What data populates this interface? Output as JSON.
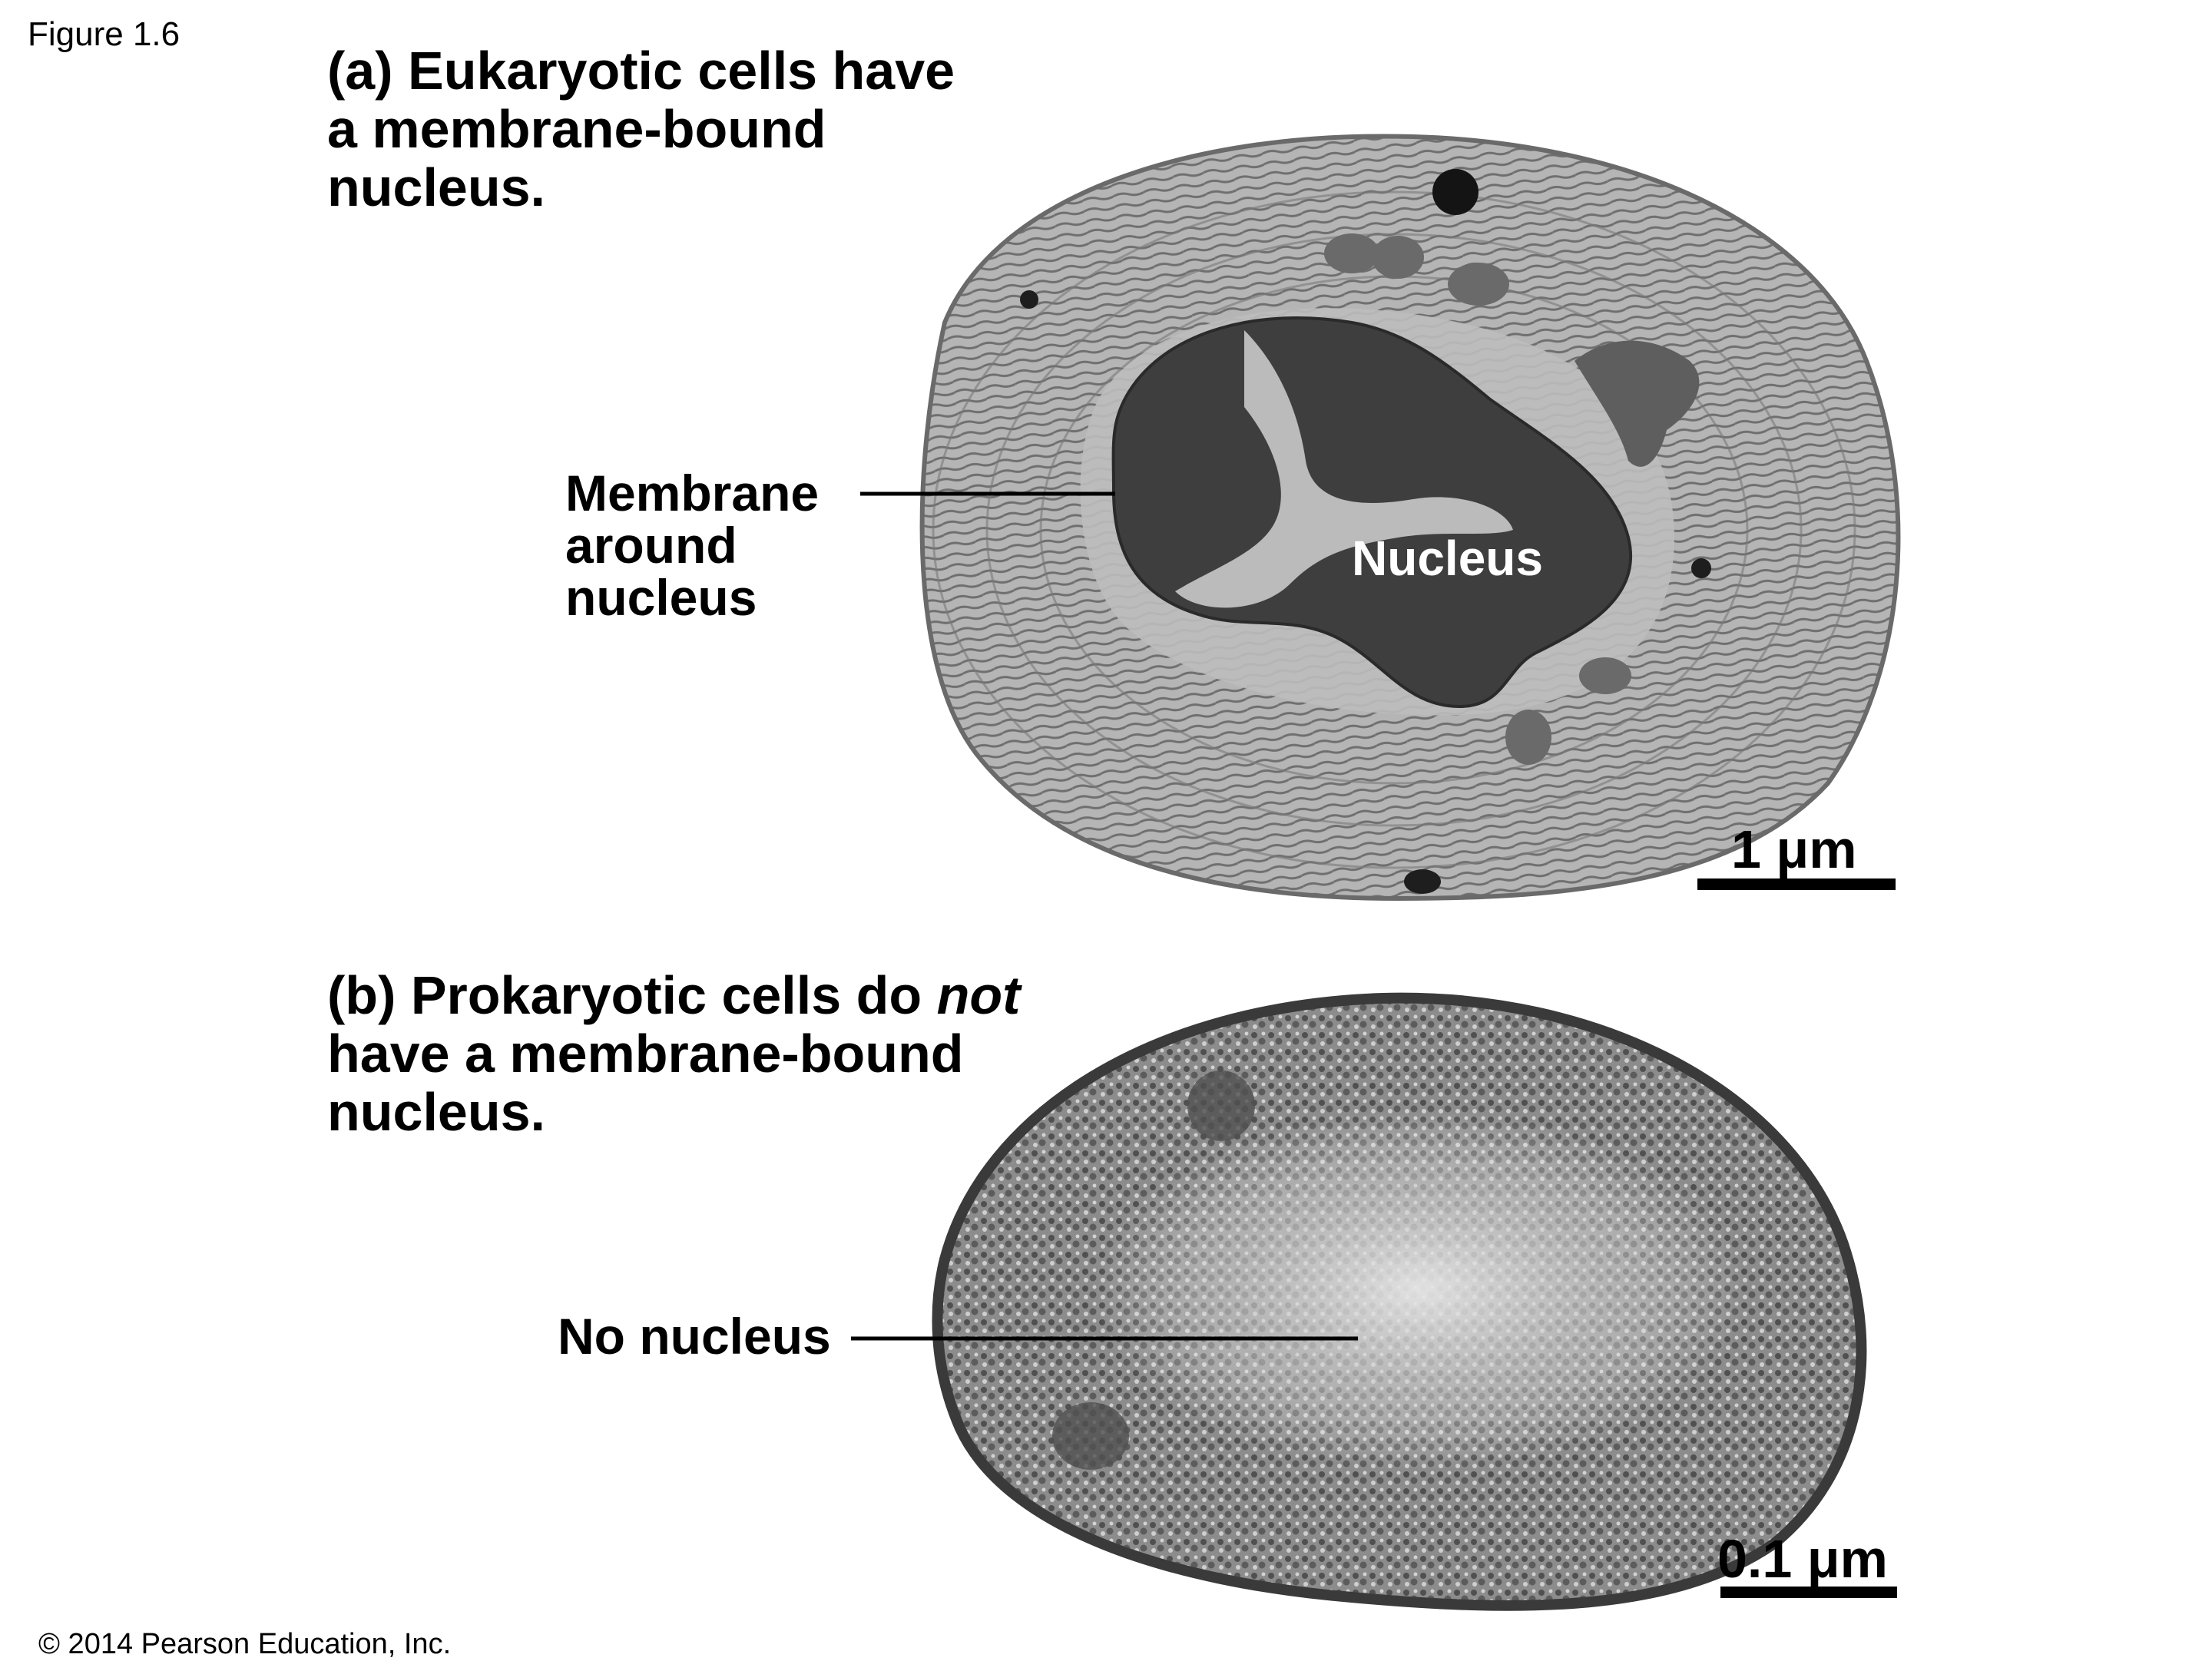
{
  "figure_label": "Figure 1.6",
  "panel_a": {
    "heading_lines": [
      "(a) Eukaryotic cells have",
      "a membrane-bound",
      "nucleus."
    ],
    "callout_lines": [
      "Membrane",
      "around",
      "nucleus"
    ],
    "nucleus_label": "Nucleus",
    "scale_label": "1 μm"
  },
  "panel_b": {
    "heading_prefix": "(b) Prokaryotic cells do ",
    "heading_emphasis": "not",
    "heading_lines": [
      "have a membrane-bound",
      "nucleus."
    ],
    "callout_label": "No nucleus",
    "scale_label": "0.1 μm"
  },
  "copyright": "© 2014 Pearson Education, Inc.",
  "colors": {
    "cytoplasm": "#a9a9a9",
    "nucleus": "#3c3c3c",
    "chromatin": "#c8c8c8",
    "outline": "#6b6b6b"
  }
}
